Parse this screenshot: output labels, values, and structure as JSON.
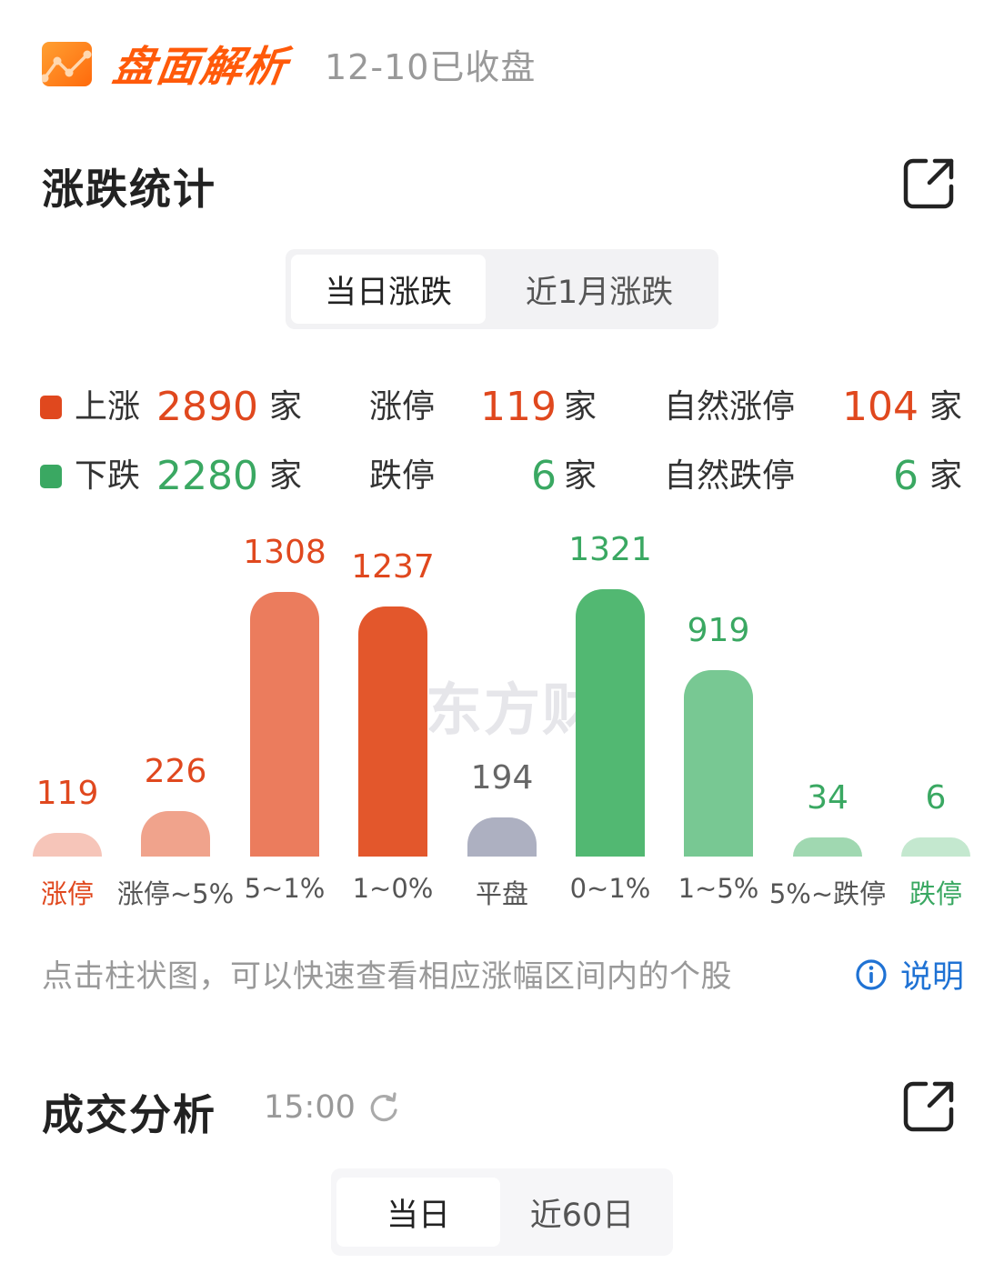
{
  "header": {
    "brand": "盘面解析",
    "status": "12-10已收盘"
  },
  "rise_fall": {
    "title": "涨跌统计",
    "tabs": [
      {
        "label": "当日涨跌",
        "active": true
      },
      {
        "label": "近1月涨跌",
        "active": false
      }
    ],
    "stats": {
      "up": {
        "label": "上涨",
        "value": "2890",
        "unit": "家"
      },
      "limit_up": {
        "label": "涨停",
        "value": "119",
        "unit": "家"
      },
      "natural_limit_up": {
        "label": "自然涨停",
        "value": "104",
        "unit": "家"
      },
      "down": {
        "label": "下跌",
        "value": "2280",
        "unit": "家"
      },
      "limit_down": {
        "label": "跌停",
        "value": "6",
        "unit": "家"
      },
      "natural_limit_down": {
        "label": "自然跌停",
        "value": "6",
        "unit": "家"
      }
    },
    "watermark": "东方财",
    "hint": "点击柱状图，可以快速查看相应涨幅区间内的个股",
    "explain_label": "说明"
  },
  "colors": {
    "up": "#e0481e",
    "down": "#3aa862",
    "flat": "#666666",
    "explain": "#1f72d4",
    "brand": "#ff5a0a"
  },
  "chart_data": {
    "type": "bar",
    "title": "涨跌统计",
    "xlabel": "",
    "ylabel": "",
    "categories": [
      "涨停",
      "涨停~5%",
      "5~1%",
      "1~0%",
      "平盘",
      "0~1%",
      "1~5%",
      "5%~跌停",
      "跌停"
    ],
    "values": [
      119,
      226,
      1308,
      1237,
      194,
      1321,
      919,
      34,
      6
    ],
    "labels": [
      "119",
      "226",
      "1308",
      "1237",
      "194",
      "1321",
      "919",
      "34",
      "6"
    ],
    "bar_colors": [
      "#f6c5b9",
      "#f0a38c",
      "#eb7c5d",
      "#e3572c",
      "#adb0c1",
      "#52b872",
      "#78c893",
      "#a0d8b1",
      "#c4e8cf"
    ],
    "label_colors": [
      "#e0481e",
      "#e0481e",
      "#e0481e",
      "#e0481e",
      "#666666",
      "#3aa862",
      "#3aa862",
      "#3aa862",
      "#3aa862"
    ],
    "category_colors": [
      "#e0481e",
      "#555555",
      "#555555",
      "#555555",
      "#555555",
      "#555555",
      "#555555",
      "#555555",
      "#3aa862"
    ],
    "grid": false,
    "legend": false
  },
  "volume": {
    "title": "成交分析",
    "time": "15:00",
    "tabs": [
      {
        "label": "当日",
        "active": true
      },
      {
        "label": "近60日",
        "active": false
      }
    ]
  }
}
